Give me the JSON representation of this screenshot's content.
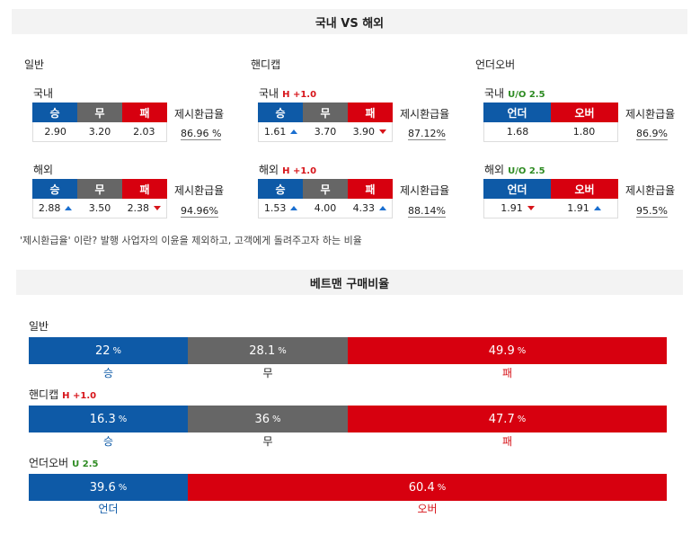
{
  "header1": "국내 VS 해외",
  "header2": "베트맨 구매비율",
  "rate_label": "제시환급율",
  "groups": {
    "general": {
      "title": "일반",
      "domestic": {
        "label": "국내",
        "cols": [
          "승",
          "무",
          "패"
        ],
        "vals": [
          "2.90",
          "3.20",
          "2.03"
        ],
        "rate": "86.96 %"
      },
      "overseas": {
        "label": "해외",
        "cols": [
          "승",
          "무",
          "패"
        ],
        "vals": [
          "2.88",
          "3.50",
          "2.38"
        ],
        "rate": "94.96%"
      }
    },
    "handicap": {
      "title": "핸디캡",
      "domestic": {
        "label": "국내",
        "sub": "H +1.0",
        "cols": [
          "승",
          "무",
          "패"
        ],
        "vals": [
          "1.61",
          "3.70",
          "3.90"
        ],
        "rate": "87.12%"
      },
      "overseas": {
        "label": "해외",
        "sub": "H +1.0",
        "cols": [
          "승",
          "무",
          "패"
        ],
        "vals": [
          "1.53",
          "4.00",
          "4.33"
        ],
        "rate": "88.14%"
      }
    },
    "underover": {
      "title": "언더오버",
      "domestic": {
        "label": "국내",
        "sub": "U/O 2.5",
        "cols": [
          "언더",
          "오버"
        ],
        "vals": [
          "1.68",
          "1.80"
        ],
        "rate": "86.9%"
      },
      "overseas": {
        "label": "해외",
        "sub": "U/O 2.5",
        "cols": [
          "언더",
          "오버"
        ],
        "vals": [
          "1.91",
          "1.91"
        ],
        "rate": "95.5%"
      }
    }
  },
  "note": "'제시환급율' 이란? 발행 사업자의 이윤을 제외하고, 고객에게 돌려주고자 하는 비율",
  "bets": {
    "general": {
      "title": "일반",
      "values": [
        "22",
        "28.1",
        "49.9"
      ],
      "labels": [
        "승",
        "무",
        "패"
      ]
    },
    "handicap": {
      "title": "핸디캡",
      "sub": "H +1.0",
      "values": [
        "16.3",
        "36",
        "47.7"
      ],
      "labels": [
        "승",
        "무",
        "패"
      ]
    },
    "underover": {
      "title": "언더오버",
      "sub": "U 2.5",
      "values": [
        "39.6",
        "60.4"
      ],
      "labels": [
        "언더",
        "오버"
      ]
    }
  },
  "pct_sign": "%",
  "colors": {
    "blue": "#0e5aa7",
    "gray": "#666666",
    "red": "#d7000f",
    "green": "#2e8b22"
  }
}
